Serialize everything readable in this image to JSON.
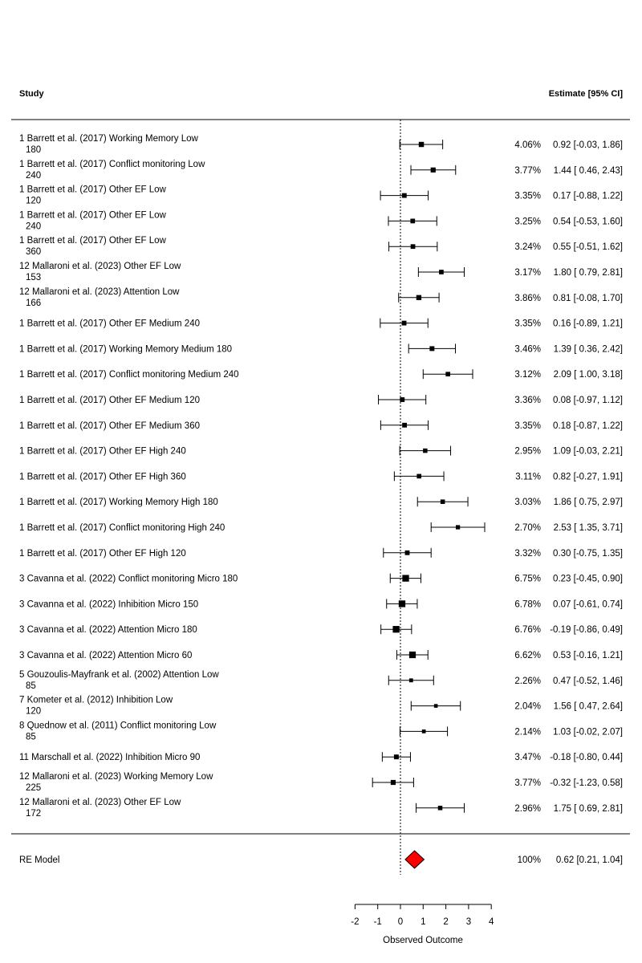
{
  "headers": {
    "left": "Study",
    "right": "Estimate [95% CI]"
  },
  "summary": {
    "label": "RE Model",
    "weight": "100%",
    "ci_text": "0.62 [0.21, 1.04]",
    "color": "#ff0000"
  },
  "chart_data": {
    "type": "forest",
    "xlabel": "Observed Outcome",
    "xlim": [
      -2,
      4
    ],
    "ticks": [
      -2,
      -1,
      0,
      1,
      2,
      3,
      4
    ],
    "reference_line": 0,
    "rows": [
      {
        "label1": "1   Barrett et al. (2017)   Working Memory   Low",
        "label2": "180",
        "est": 0.92,
        "lo": -0.03,
        "hi": 1.86,
        "weight": "4.06%",
        "ci_text": "0.92 [-0.03, 1.86]"
      },
      {
        "label1": "1   Barrett et al. (2017)   Conflict monitoring   Low",
        "label2": "240",
        "est": 1.44,
        "lo": 0.46,
        "hi": 2.43,
        "weight": "3.77%",
        "ci_text": "1.44 [ 0.46, 2.43]"
      },
      {
        "label1": "1   Barrett et al. (2017)   Other EF   Low",
        "label2": "120",
        "est": 0.17,
        "lo": -0.88,
        "hi": 1.22,
        "weight": "3.35%",
        "ci_text": "0.17 [-0.88, 1.22]"
      },
      {
        "label1": "1   Barrett et al. (2017)   Other EF   Low",
        "label2": "240",
        "est": 0.54,
        "lo": -0.53,
        "hi": 1.6,
        "weight": "3.25%",
        "ci_text": "0.54 [-0.53, 1.60]"
      },
      {
        "label1": "1   Barrett et al. (2017)   Other EF   Low",
        "label2": "360",
        "est": 0.55,
        "lo": -0.51,
        "hi": 1.62,
        "weight": "3.24%",
        "ci_text": "0.55 [-0.51, 1.62]"
      },
      {
        "label1": "12   Mallaroni et al. (2023)   Other EF   Low",
        "label2": "153",
        "est": 1.8,
        "lo": 0.79,
        "hi": 2.81,
        "weight": "3.17%",
        "ci_text": "1.80 [ 0.79, 2.81]"
      },
      {
        "label1": "12   Mallaroni et al. (2023)   Attention   Low",
        "label2": "166",
        "est": 0.81,
        "lo": -0.08,
        "hi": 1.7,
        "weight": "3.86%",
        "ci_text": "0.81 [-0.08, 1.70]"
      },
      {
        "label1": "1   Barrett et al. (2017)   Other EF   Medium   240",
        "label2": "",
        "est": 0.16,
        "lo": -0.89,
        "hi": 1.21,
        "weight": "3.35%",
        "ci_text": "0.16 [-0.89, 1.21]"
      },
      {
        "label1": "1   Barrett et al. (2017)   Working Memory   Medium   180",
        "label2": "",
        "est": 1.39,
        "lo": 0.36,
        "hi": 2.42,
        "weight": "3.46%",
        "ci_text": "1.39 [ 0.36, 2.42]"
      },
      {
        "label1": "1   Barrett et al. (2017)   Conflict monitoring   Medium   240",
        "label2": "",
        "est": 2.09,
        "lo": 1.0,
        "hi": 3.18,
        "weight": "3.12%",
        "ci_text": "2.09 [ 1.00, 3.18]"
      },
      {
        "label1": "1   Barrett et al. (2017)   Other EF   Medium   120",
        "label2": "",
        "est": 0.08,
        "lo": -0.97,
        "hi": 1.12,
        "weight": "3.36%",
        "ci_text": "0.08 [-0.97, 1.12]"
      },
      {
        "label1": "1   Barrett et al. (2017)   Other EF   Medium   360",
        "label2": "",
        "est": 0.18,
        "lo": -0.87,
        "hi": 1.22,
        "weight": "3.35%",
        "ci_text": "0.18 [-0.87, 1.22]"
      },
      {
        "label1": "1   Barrett et al. (2017)   Other EF   High   240",
        "label2": "",
        "est": 1.09,
        "lo": -0.03,
        "hi": 2.21,
        "weight": "2.95%",
        "ci_text": "1.09 [-0.03, 2.21]"
      },
      {
        "label1": "1   Barrett et al. (2017)   Other EF   High   360",
        "label2": "",
        "est": 0.82,
        "lo": -0.27,
        "hi": 1.91,
        "weight": "3.11%",
        "ci_text": "0.82 [-0.27, 1.91]"
      },
      {
        "label1": "1   Barrett et al. (2017)   Working Memory   High   180",
        "label2": "",
        "est": 1.86,
        "lo": 0.75,
        "hi": 2.97,
        "weight": "3.03%",
        "ci_text": "1.86 [ 0.75, 2.97]"
      },
      {
        "label1": "1   Barrett et al. (2017)   Conflict monitoring   High   240",
        "label2": "",
        "est": 2.53,
        "lo": 1.35,
        "hi": 3.71,
        "weight": "2.70%",
        "ci_text": "2.53 [ 1.35, 3.71]"
      },
      {
        "label1": "1   Barrett et al. (2017)   Other EF   High   120",
        "label2": "",
        "est": 0.3,
        "lo": -0.75,
        "hi": 1.35,
        "weight": "3.32%",
        "ci_text": "0.30 [-0.75, 1.35]"
      },
      {
        "label1": "3   Cavanna et al. (2022)   Conflict monitoring   Micro   180",
        "label2": "",
        "est": 0.23,
        "lo": -0.45,
        "hi": 0.9,
        "weight": "6.75%",
        "ci_text": "0.23 [-0.45, 0.90]"
      },
      {
        "label1": "3   Cavanna et al. (2022)   Inhibition   Micro   150",
        "label2": "",
        "est": 0.07,
        "lo": -0.61,
        "hi": 0.74,
        "weight": "6.78%",
        "ci_text": "0.07 [-0.61, 0.74]"
      },
      {
        "label1": "3   Cavanna et al. (2022)   Attention   Micro   180",
        "label2": "",
        "est": -0.19,
        "lo": -0.86,
        "hi": 0.49,
        "weight": "6.76%",
        "ci_text": "-0.19 [-0.86, 0.49]"
      },
      {
        "label1": "3   Cavanna et al. (2022)   Attention   Micro   60",
        "label2": "",
        "est": 0.53,
        "lo": -0.16,
        "hi": 1.21,
        "weight": "6.62%",
        "ci_text": "0.53 [-0.16, 1.21]"
      },
      {
        "label1": "5   Gouzoulis-Mayfrank et al. (2002)   Attention   Low",
        "label2": "85",
        "est": 0.47,
        "lo": -0.52,
        "hi": 1.46,
        "weight": "2.26%",
        "ci_text": "0.47 [-0.52, 1.46]"
      },
      {
        "label1": "7   Kometer et al. (2012)   Inhibition   Low",
        "label2": "120",
        "est": 1.56,
        "lo": 0.47,
        "hi": 2.64,
        "weight": "2.04%",
        "ci_text": "1.56 [ 0.47, 2.64]"
      },
      {
        "label1": "8   Quednow et al. (2011)   Conflict monitoring   Low",
        "label2": "85",
        "est": 1.03,
        "lo": -0.02,
        "hi": 2.07,
        "weight": "2.14%",
        "ci_text": "1.03 [-0.02, 2.07]"
      },
      {
        "label1": "11   Marschall et al. (2022)   Inhibition   Micro   90",
        "label2": "",
        "est": -0.18,
        "lo": -0.8,
        "hi": 0.44,
        "weight": "3.47%",
        "ci_text": "-0.18 [-0.80, 0.44]"
      },
      {
        "label1": "12   Mallaroni et al. (2023)   Working Memory   Low",
        "label2": "225",
        "est": -0.32,
        "lo": -1.23,
        "hi": 0.58,
        "weight": "3.77%",
        "ci_text": "-0.32 [-1.23, 0.58]"
      },
      {
        "label1": "12   Mallaroni et al. (2023)   Other EF   Low",
        "label2": "172",
        "est": 1.75,
        "lo": 0.69,
        "hi": 2.81,
        "weight": "2.96%",
        "ci_text": "1.75 [ 0.69, 2.81]"
      }
    ],
    "summary": {
      "est": 0.62,
      "lo": 0.21,
      "hi": 1.04
    }
  }
}
